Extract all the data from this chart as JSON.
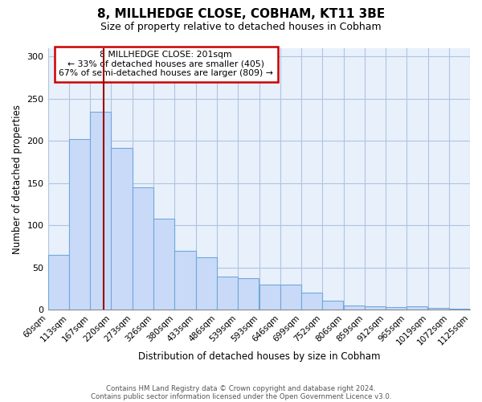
{
  "title": "8, MILLHEDGE CLOSE, COBHAM, KT11 3BE",
  "subtitle": "Size of property relative to detached houses in Cobham",
  "xlabel": "Distribution of detached houses by size in Cobham",
  "ylabel": "Number of detached properties",
  "bar_left_edges": [
    60,
    113,
    167,
    220,
    273,
    326,
    380,
    433,
    486,
    539,
    593,
    646,
    699,
    752,
    806,
    859,
    912,
    965,
    1019,
    1072
  ],
  "bar_heights": [
    65,
    202,
    235,
    192,
    145,
    108,
    70,
    62,
    39,
    37,
    30,
    30,
    20,
    11,
    5,
    4,
    3,
    4,
    2,
    1
  ],
  "bin_width": 53,
  "tick_labels": [
    "60sqm",
    "113sqm",
    "167sqm",
    "220sqm",
    "273sqm",
    "326sqm",
    "380sqm",
    "433sqm",
    "486sqm",
    "539sqm",
    "593sqm",
    "646sqm",
    "699sqm",
    "752sqm",
    "806sqm",
    "859sqm",
    "912sqm",
    "965sqm",
    "1019sqm",
    "1072sqm",
    "1125sqm"
  ],
  "bar_color": "#c9daf8",
  "bar_edge_color": "#6fa8dc",
  "property_line_x": 201,
  "property_line_color": "#990000",
  "annotation_text": "8 MILLHEDGE CLOSE: 201sqm\n← 33% of detached houses are smaller (405)\n67% of semi-detached houses are larger (809) →",
  "annotation_box_color": "#ffffff",
  "annotation_box_edge_color": "#cc0000",
  "ylim": [
    0,
    310
  ],
  "footnote1": "Contains HM Land Registry data © Crown copyright and database right 2024.",
  "footnote2": "Contains public sector information licensed under the Open Government Licence v3.0.",
  "background_color": "#ffffff",
  "grid_color": "#b0c4de",
  "title_fontsize": 11,
  "subtitle_fontsize": 9,
  "axis_label_fontsize": 8.5,
  "tick_fontsize": 7.5
}
